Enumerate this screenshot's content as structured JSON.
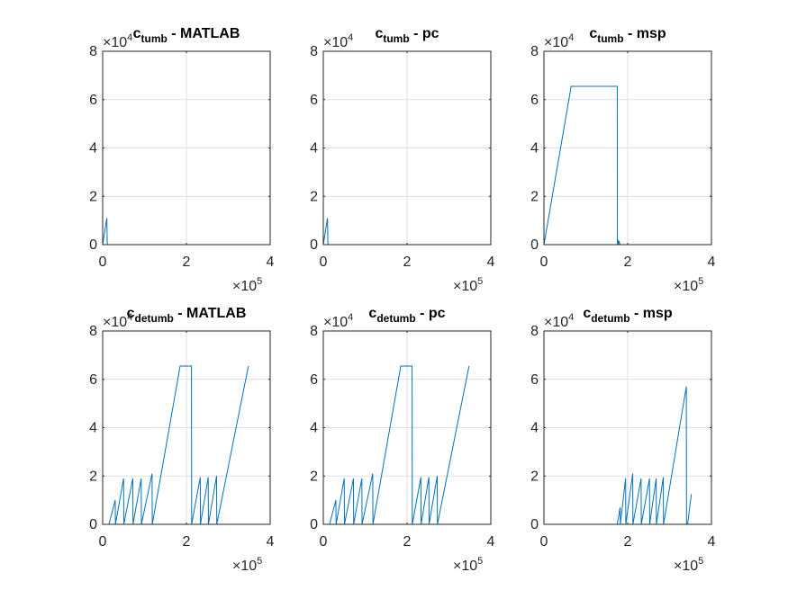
{
  "chart_data": [
    {
      "type": "line",
      "title_main": "c",
      "title_sub": "tumb",
      "title_rest": " - MATLAB",
      "x_tick_labels": [
        "0",
        "2",
        "4"
      ],
      "y_tick_labels": [
        "0",
        "2",
        "4",
        "6",
        "8"
      ],
      "x_exponent": "5",
      "y_exponent": "4",
      "xlim": [
        0,
        400000
      ],
      "ylim": [
        0,
        80000
      ],
      "grid": true,
      "line_color": "#0072BD",
      "series": [
        {
          "x": [
            0,
            10000,
            11000,
            12000,
            350000
          ],
          "y": [
            0,
            11000,
            0,
            0,
            0
          ]
        }
      ]
    },
    {
      "type": "line",
      "title_main": "c",
      "title_sub": "tumb",
      "title_rest": " - pc",
      "x_tick_labels": [
        "0",
        "2",
        "4"
      ],
      "y_tick_labels": [
        "0",
        "2",
        "4",
        "6",
        "8"
      ],
      "x_exponent": "5",
      "y_exponent": "4",
      "xlim": [
        0,
        400000
      ],
      "ylim": [
        0,
        80000
      ],
      "grid": true,
      "line_color": "#0072BD",
      "series": [
        {
          "x": [
            0,
            10000,
            11000,
            12000,
            350000
          ],
          "y": [
            0,
            11000,
            0,
            0,
            0
          ]
        }
      ]
    },
    {
      "type": "line",
      "title_main": "c",
      "title_sub": "tumb",
      "title_rest": " - msp",
      "x_tick_labels": [
        "0",
        "2",
        "4"
      ],
      "y_tick_labels": [
        "0",
        "2",
        "4",
        "6",
        "8"
      ],
      "x_exponent": "5",
      "y_exponent": "4",
      "xlim": [
        0,
        400000
      ],
      "ylim": [
        0,
        80000
      ],
      "grid": true,
      "line_color": "#0072BD",
      "series": [
        {
          "x": [
            0,
            65000,
            175000,
            175500,
            177000,
            178000,
            179000,
            182000,
            350000
          ],
          "y": [
            0,
            65500,
            65500,
            0,
            2000,
            0,
            1500,
            0,
            0
          ]
        }
      ]
    },
    {
      "type": "line",
      "title_main": "c",
      "title_sub": "detumb",
      "title_rest": " - MATLAB",
      "x_tick_labels": [
        "0",
        "2",
        "4"
      ],
      "y_tick_labels": [
        "0",
        "2",
        "4",
        "6",
        "8"
      ],
      "x_exponent": "5",
      "y_exponent": "4",
      "xlim": [
        0,
        400000
      ],
      "ylim": [
        0,
        80000
      ],
      "grid": true,
      "line_color": "#0072BD",
      "series": [
        {
          "x": [
            0,
            15000,
            30000,
            30500,
            50000,
            50500,
            72000,
            72500,
            92000,
            92500,
            118000,
            118500,
            185000,
            212000,
            212500,
            233000,
            233500,
            252000,
            252500,
            272000,
            272500,
            348000
          ],
          "y": [
            0,
            0,
            10000,
            0,
            19000,
            0,
            19000,
            0,
            19000,
            0,
            21000,
            0,
            65500,
            65500,
            0,
            19500,
            0,
            19500,
            0,
            20000,
            0,
            65500
          ]
        }
      ]
    },
    {
      "type": "line",
      "title_main": "c",
      "title_sub": "detumb",
      "title_rest": " - pc",
      "x_tick_labels": [
        "0",
        "2",
        "4"
      ],
      "y_tick_labels": [
        "0",
        "2",
        "4",
        "6",
        "8"
      ],
      "x_exponent": "5",
      "y_exponent": "4",
      "xlim": [
        0,
        400000
      ],
      "ylim": [
        0,
        80000
      ],
      "grid": true,
      "line_color": "#0072BD",
      "series": [
        {
          "x": [
            0,
            15000,
            30000,
            30500,
            50000,
            50500,
            72000,
            72500,
            92000,
            92500,
            118000,
            118500,
            185000,
            212000,
            212500,
            233000,
            233500,
            252000,
            252500,
            272000,
            272500,
            348000
          ],
          "y": [
            0,
            0,
            10000,
            0,
            19000,
            0,
            19000,
            0,
            19000,
            0,
            21000,
            0,
            65500,
            65500,
            0,
            19500,
            0,
            19500,
            0,
            20000,
            0,
            65500
          ]
        }
      ]
    },
    {
      "type": "line",
      "title_main": "c",
      "title_sub": "detumb",
      "title_rest": " - msp",
      "x_tick_labels": [
        "0",
        "2",
        "4"
      ],
      "y_tick_labels": [
        "0",
        "2",
        "4",
        "6",
        "8"
      ],
      "x_exponent": "5",
      "y_exponent": "4",
      "xlim": [
        0,
        400000
      ],
      "ylim": [
        0,
        80000
      ],
      "grid": true,
      "line_color": "#0072BD",
      "series": [
        {
          "x": [
            0,
            175000,
            182000,
            182500,
            195000,
            195500,
            212000,
            212500,
            232000,
            232500,
            252000,
            252500,
            268000,
            268500,
            285000,
            285500,
            340000,
            340500,
            343000,
            352000
          ],
          "y": [
            0,
            0,
            7000,
            0,
            19000,
            0,
            21000,
            0,
            19000,
            0,
            19000,
            0,
            19000,
            0,
            19500,
            0,
            57000,
            0,
            0,
            12500
          ]
        }
      ]
    }
  ]
}
